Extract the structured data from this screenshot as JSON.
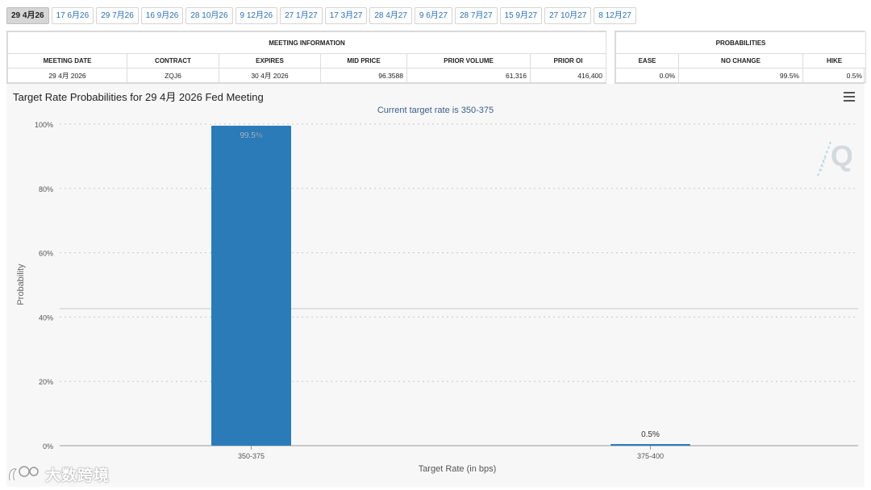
{
  "tabs": [
    "29 4月26",
    "17 6月26",
    "29 7月26",
    "16 9月26",
    "28 10月26",
    "9 12月26",
    "27 1月27",
    "17 3月27",
    "28 4月27",
    "9 6月27",
    "28 7月27",
    "15 9月27",
    "27 10月27",
    "8 12月27"
  ],
  "active_tab": 0,
  "meeting_info": {
    "title": "MEETING INFORMATION",
    "headers": [
      "MEETING DATE",
      "CONTRACT",
      "EXPIRES",
      "MID PRICE",
      "PRIOR VOLUME",
      "PRIOR OI"
    ],
    "row": [
      "29 4月 2026",
      "ZQJ6",
      "30 4月 2026",
      "96.3588",
      "61,316",
      "416,400"
    ]
  },
  "probabilities": {
    "title": "PROBABILITIES",
    "headers": [
      "EASE",
      "NO CHANGE",
      "HIKE"
    ],
    "row": [
      "0.0%",
      "99.5%",
      "0.5%"
    ]
  },
  "chart_data": {
    "type": "bar",
    "title": "Target Rate Probabilities for 29 4月 2026 Fed Meeting",
    "subtitle": "Current target rate is 350-375",
    "categories": [
      "350-375",
      "375-400"
    ],
    "values": [
      99.5,
      0.5
    ],
    "data_labels": [
      "99.5%",
      "0.5%"
    ],
    "xlabel": "Target Rate (in bps)",
    "ylabel": "Probability",
    "ylim": [
      0,
      100
    ],
    "yticks": [
      0,
      20,
      40,
      60,
      80,
      100
    ],
    "ytick_labels": [
      "0%",
      "20%",
      "40%",
      "60%",
      "80%",
      "100%"
    ],
    "bar_color": "#2b7bb9"
  },
  "watermark": {
    "text": "大数跨境"
  }
}
